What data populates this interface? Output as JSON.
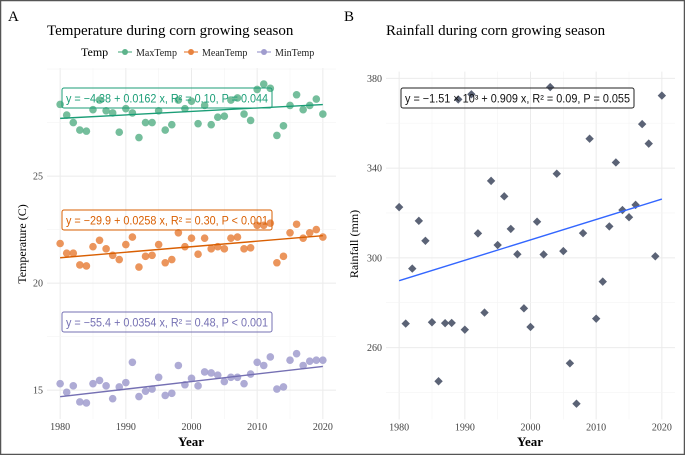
{
  "chart_data": [
    {
      "panel_label": "A",
      "type": "scatter",
      "title": "Temperature during corn growing season",
      "xlabel": "Year",
      "ylabel": "Temperature (C)",
      "xlim": [
        1978,
        2022
      ],
      "ylim": [
        13.65,
        30.05
      ],
      "xticks": [
        1980,
        1990,
        2000,
        2010,
        2020
      ],
      "yticks": [
        15,
        20,
        25
      ],
      "grid": true,
      "legend": {
        "title": "Temp",
        "position": "top",
        "entries": [
          "MaxTemp",
          "MeanTemp",
          "MinTemp"
        ]
      },
      "x": [
        1980,
        1981,
        1982,
        1983,
        1984,
        1985,
        1986,
        1987,
        1988,
        1989,
        1990,
        1991,
        1992,
        1993,
        1994,
        1995,
        1996,
        1997,
        1998,
        1999,
        2000,
        2001,
        2002,
        2003,
        2004,
        2005,
        2006,
        2007,
        2008,
        2009,
        2010,
        2011,
        2012,
        2013,
        2014,
        2015,
        2016,
        2017,
        2018,
        2019,
        2020
      ],
      "series": [
        {
          "name": "MaxTemp",
          "point_color": "#5db38b",
          "line_color": "#1b9e77",
          "values": [
            28.35,
            27.85,
            27.5,
            27.15,
            27.1,
            28.1,
            28.55,
            28.05,
            27.95,
            27.05,
            28.15,
            27.95,
            26.8,
            27.5,
            27.5,
            28.05,
            27.15,
            27.4,
            28.55,
            28.15,
            28.5,
            27.45,
            28.3,
            27.4,
            27.75,
            27.8,
            28.55,
            28.65,
            27.9,
            27.6,
            29.05,
            29.3,
            29.1,
            26.9,
            27.35,
            28.3,
            28.8,
            28.1,
            28.3,
            28.6,
            27.9
          ],
          "fit": {
            "intercept": -4.38,
            "slope": 0.0162
          },
          "equation": "y = −4.38 + 0.0162 x, R² = 0.10, P = 0.044"
        },
        {
          "name": "MeanTemp",
          "point_color": "#e8833f",
          "line_color": "#d95f02",
          "values": [
            21.85,
            21.4,
            21.4,
            20.85,
            20.8,
            21.7,
            22.0,
            21.6,
            21.3,
            21.1,
            21.8,
            22.15,
            20.75,
            21.25,
            21.3,
            21.8,
            20.95,
            21.1,
            22.35,
            21.7,
            22.1,
            21.35,
            22.1,
            21.6,
            21.7,
            21.6,
            22.1,
            22.15,
            21.6,
            21.65,
            22.7,
            22.7,
            22.8,
            20.95,
            21.25,
            22.35,
            22.75,
            22.1,
            22.35,
            22.5,
            22.15
          ],
          "fit": {
            "intercept": -29.9,
            "slope": 0.0258
          },
          "equation": "y = −29.9 + 0.0258 x, R² = 0.30, P < 0.001"
        },
        {
          "name": "MinTemp",
          "point_color": "#a09cce",
          "line_color": "#7570b3",
          "values": [
            15.3,
            14.9,
            15.2,
            14.45,
            14.4,
            15.3,
            15.45,
            15.2,
            14.6,
            15.15,
            15.35,
            16.3,
            14.7,
            14.95,
            15.05,
            15.6,
            14.75,
            14.85,
            16.15,
            15.25,
            15.55,
            15.2,
            15.85,
            15.8,
            15.7,
            15.4,
            15.6,
            15.6,
            15.3,
            15.75,
            16.3,
            16.15,
            16.55,
            15.05,
            15.15,
            16.4,
            16.7,
            16.15,
            16.35,
            16.4,
            16.4
          ],
          "fit": {
            "intercept": -55.4,
            "slope": 0.0354
          },
          "equation": "y = −55.4 + 0.0354 x, R² = 0.48, P < 0.001"
        }
      ]
    },
    {
      "panel_label": "B",
      "type": "scatter",
      "title": "Rainfall during corn growing season",
      "xlabel": "Year",
      "ylabel": "Rainfall (mm)",
      "xlim": [
        1978,
        2022
      ],
      "ylim": [
        228,
        383
      ],
      "xticks": [
        1980,
        1990,
        2000,
        2010,
        2020
      ],
      "yticks": [
        260,
        300,
        340,
        380
      ],
      "grid": true,
      "x": [
        1980,
        1981,
        1982,
        1983,
        1984,
        1985,
        1986,
        1987,
        1988,
        1989,
        1990,
        1991,
        1992,
        1993,
        1994,
        1995,
        1996,
        1997,
        1998,
        1999,
        2000,
        2001,
        2002,
        2003,
        2004,
        2005,
        2006,
        2007,
        2008,
        2009,
        2010,
        2011,
        2012,
        2013,
        2014,
        2015,
        2016,
        2017,
        2018,
        2019,
        2020
      ],
      "series": [
        {
          "point_color": "#5b6376",
          "line_color": "#3366ff",
          "marker": "diamond",
          "values": [
            322.6,
            270.7,
            295.2,
            316.5,
            307.6,
            271.3,
            245.0,
            270.9,
            271.0,
            370.6,
            268.0,
            372.9,
            310.9,
            275.6,
            334.3,
            305.7,
            327.4,
            312.9,
            301.6,
            277.5,
            269.2,
            316.1,
            301.5,
            376.1,
            337.5,
            303.0,
            253.0,
            235.0,
            311.0,
            353.1,
            272.9,
            289.4,
            314.0,
            342.5,
            321.3,
            318.1,
            323.6,
            359.6,
            350.9,
            300.7,
            372.3
          ],
          "fit": {
            "intercept": -1510,
            "slope": 0.909
          },
          "equation": "y = −1.51 × 10³ + 0.909 x, R² = 0.09, P = 0.055"
        }
      ]
    }
  ]
}
